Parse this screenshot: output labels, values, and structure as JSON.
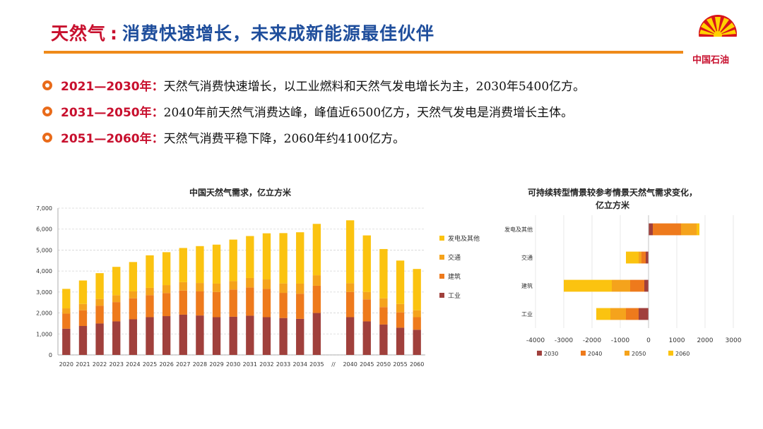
{
  "header": {
    "title_part1": "天然气",
    "title_sep": ":",
    "title_part2": "消费快速增长，未来成新能源最佳伙伴",
    "logo_text": "中国石油"
  },
  "colors": {
    "accent_orange": "#ef8a1a",
    "title_red": "#c8102e",
    "title_blue": "#1f4e9c"
  },
  "bullets": [
    {
      "period": "2021—2030年：",
      "text": "天然气消费快速增长，以工业燃料和天然气发电增长为主，2030年5400亿方。"
    },
    {
      "period": "2031—2050年：",
      "text": "2040年前天然气消费达峰，峰值近6500亿方，天然气发电是消费增长主体。"
    },
    {
      "period": "2051—2060年：",
      "text": "天然气消费平稳下降，2060年约4100亿方。"
    }
  ],
  "chart_data": [
    {
      "type": "bar",
      "stacked": true,
      "title": "中国天然气需求，亿立方米",
      "categories": [
        "2020",
        "2021",
        "2022",
        "2023",
        "2024",
        "2025",
        "2026",
        "2027",
        "2028",
        "2029",
        "2030",
        "2031",
        "2032",
        "2033",
        "2034",
        "2035",
        "//",
        "2040",
        "2045",
        "2050",
        "2055",
        "2060"
      ],
      "ylim": [
        0,
        7000
      ],
      "yticks": [
        "0",
        "1,000",
        "2,000",
        "3,000",
        "4,000",
        "5,000",
        "6,000",
        "7,000"
      ],
      "grid": true,
      "legend": "right",
      "series": [
        {
          "name": "工业",
          "color": "#a0403c",
          "values": [
            1250,
            1380,
            1500,
            1600,
            1700,
            1800,
            1850,
            1920,
            1880,
            1800,
            1820,
            1870,
            1800,
            1760,
            1720,
            2000,
            null,
            1800,
            1600,
            1450,
            1300,
            1200
          ]
        },
        {
          "name": "建筑",
          "color": "#ee7a1c",
          "values": [
            720,
            750,
            850,
            920,
            1000,
            1050,
            1100,
            1150,
            1150,
            1200,
            1300,
            1350,
            1350,
            1200,
            1200,
            1300,
            null,
            1200,
            1050,
            830,
            730,
            600
          ]
        },
        {
          "name": "交通",
          "color": "#f5a31c",
          "values": [
            250,
            300,
            320,
            330,
            330,
            350,
            380,
            400,
            400,
            400,
            400,
            450,
            450,
            450,
            480,
            500,
            null,
            420,
            350,
            420,
            400,
            330
          ]
        },
        {
          "name": "发电及其他",
          "color": "#fbc310",
          "values": [
            930,
            1120,
            1230,
            1350,
            1400,
            1550,
            1570,
            1630,
            1760,
            1860,
            1980,
            2000,
            2200,
            2400,
            2450,
            2450,
            null,
            3000,
            2700,
            2350,
            2070,
            1970
          ]
        }
      ]
    },
    {
      "type": "bar",
      "orientation": "horizontal",
      "stacked": true,
      "title": "可持续转型情景较参考情景天然气需求变化，亿立方米",
      "categories": [
        "发电及其他",
        "交通",
        "建筑",
        "工业"
      ],
      "xlim": [
        -4000,
        3000
      ],
      "xticks": [
        "-4000",
        "-3000",
        "-2000",
        "-1000",
        "0",
        "1000",
        "2000",
        "3000"
      ],
      "grid": true,
      "legend": "bottom",
      "series": [
        {
          "name": "2030",
          "color": "#a0403c",
          "values": [
            150,
            -100,
            -150,
            -350
          ]
        },
        {
          "name": "2040",
          "color": "#ee7a1c",
          "values": [
            1000,
            -150,
            -500,
            -450
          ]
        },
        {
          "name": "2050",
          "color": "#f5a31c",
          "values": [
            550,
            -100,
            -650,
            -550
          ]
        },
        {
          "name": "2060",
          "color": "#fbc310",
          "values": [
            100,
            -450,
            -1700,
            -500
          ]
        }
      ]
    }
  ]
}
